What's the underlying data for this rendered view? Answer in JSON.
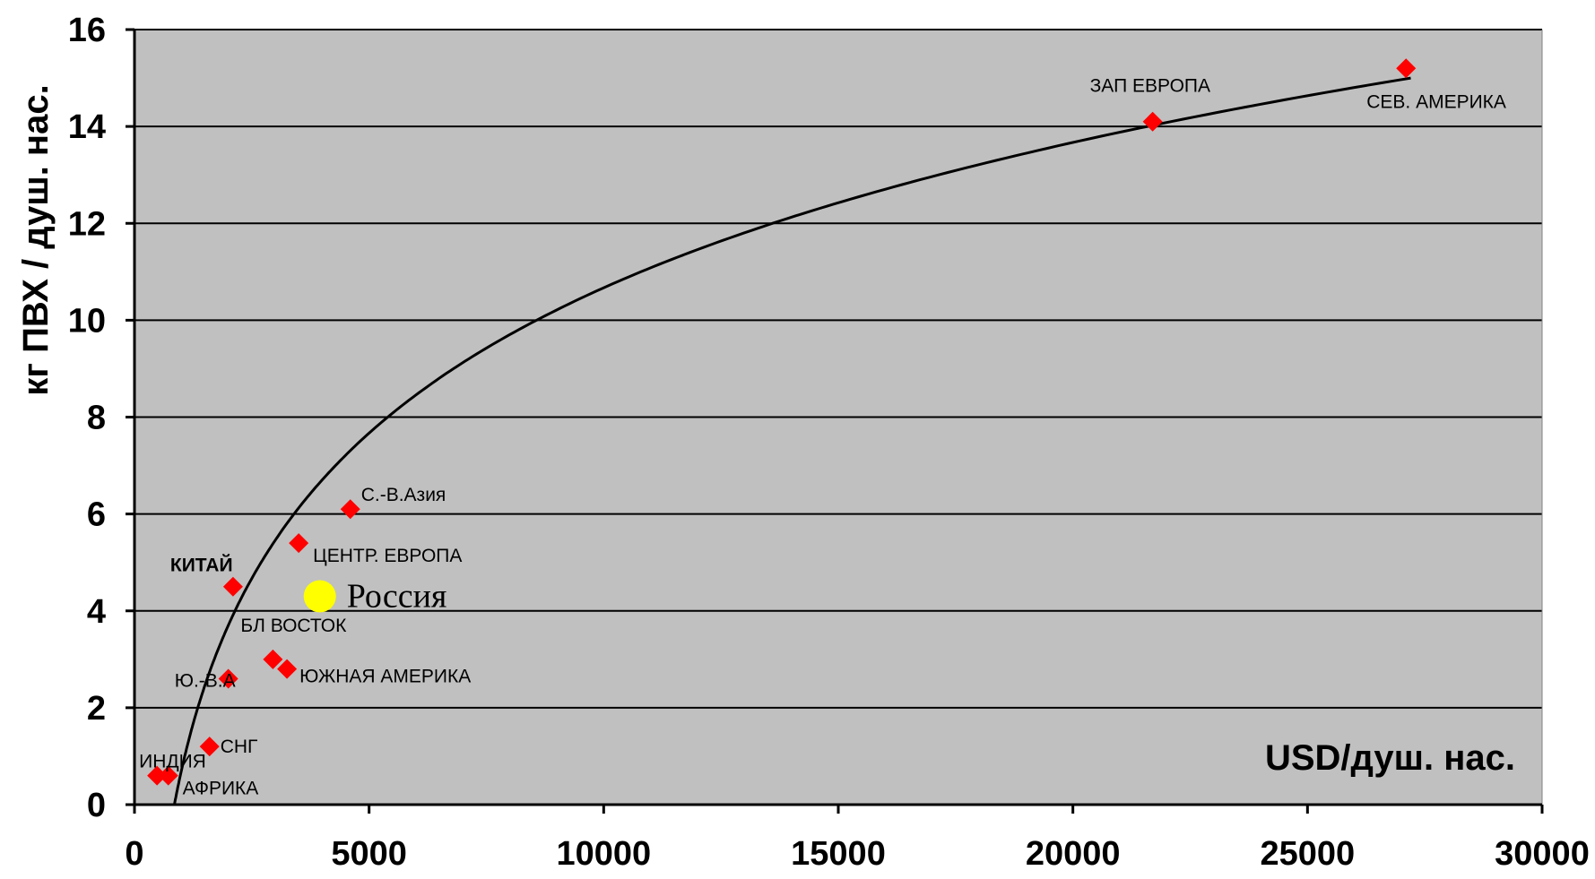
{
  "chart_data": {
    "type": "scatter",
    "title": "",
    "xlabel": "USD/душ. нас.",
    "ylabel": "кг ПВХ / душ. нас.",
    "xlim": [
      0,
      30000
    ],
    "ylim": [
      0,
      16
    ],
    "x_ticks": [
      0,
      5000,
      10000,
      15000,
      20000,
      25000,
      30000
    ],
    "y_ticks": [
      0,
      2,
      4,
      6,
      8,
      10,
      12,
      14,
      16
    ],
    "grid": "horizontal",
    "background": "#c0c0c0",
    "series": [
      {
        "marker": "diamond",
        "color": "#ff0000",
        "points": [
          {
            "label": "ИНДИЯ",
            "x": 480,
            "y": 0.6
          },
          {
            "label": "АФРИКА",
            "x": 720,
            "y": 0.6
          },
          {
            "label": "СНГ",
            "x": 1600,
            "y": 1.2
          },
          {
            "label": "Ю.-В.А",
            "x": 2000,
            "y": 2.6
          },
          {
            "label": "БЛ ВОСТОК",
            "x": 2950,
            "y": 3.0
          },
          {
            "label": "ЮЖНАЯ АМЕРИКА",
            "x": 3250,
            "y": 2.8
          },
          {
            "label": "КИТАЙ",
            "x": 2100,
            "y": 4.5
          },
          {
            "label": "ЦЕНТР. ЕВРОПА",
            "x": 3500,
            "y": 5.4
          },
          {
            "label": "С.-В.Азия",
            "x": 4600,
            "y": 6.1
          },
          {
            "label": "ЗАП ЕВРОПА",
            "x": 21700,
            "y": 14.1
          },
          {
            "label": "СЕВ. АМЕРИКА",
            "x": 27100,
            "y": 15.2
          }
        ]
      },
      {
        "marker": "circle",
        "color": "#ffff00",
        "points": [
          {
            "label": "Россия",
            "x": 3950,
            "y": 4.3
          }
        ]
      }
    ],
    "trendline": {
      "type": "logarithmic",
      "color": "#000000",
      "x_range": [
        850,
        27200
      ]
    }
  }
}
